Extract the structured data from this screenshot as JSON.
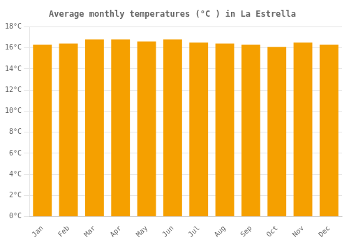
{
  "chart_data": {
    "type": "bar",
    "title": "Average monthly temperatures (°C ) in La Estrella",
    "categories": [
      "Jan",
      "Feb",
      "Mar",
      "Apr",
      "May",
      "Jun",
      "Jul",
      "Aug",
      "Sep",
      "Oct",
      "Nov",
      "Dec"
    ],
    "values": [
      16.3,
      16.4,
      16.8,
      16.8,
      16.6,
      16.8,
      16.5,
      16.4,
      16.3,
      16.1,
      16.5,
      16.3
    ],
    "color": "#F5A000",
    "ylim": [
      0,
      18
    ],
    "yticks": [
      {
        "value": 0,
        "label": "0°C"
      },
      {
        "value": 2,
        "label": "2°C"
      },
      {
        "value": 4,
        "label": "4°C"
      },
      {
        "value": 6,
        "label": "6°C"
      },
      {
        "value": 8,
        "label": "8°C"
      },
      {
        "value": 10,
        "label": "10°C"
      },
      {
        "value": 12,
        "label": "12°C"
      },
      {
        "value": 14,
        "label": "14°C"
      },
      {
        "value": 16,
        "label": "16°C"
      },
      {
        "value": 18,
        "label": "18°C"
      }
    ],
    "grid": true
  }
}
